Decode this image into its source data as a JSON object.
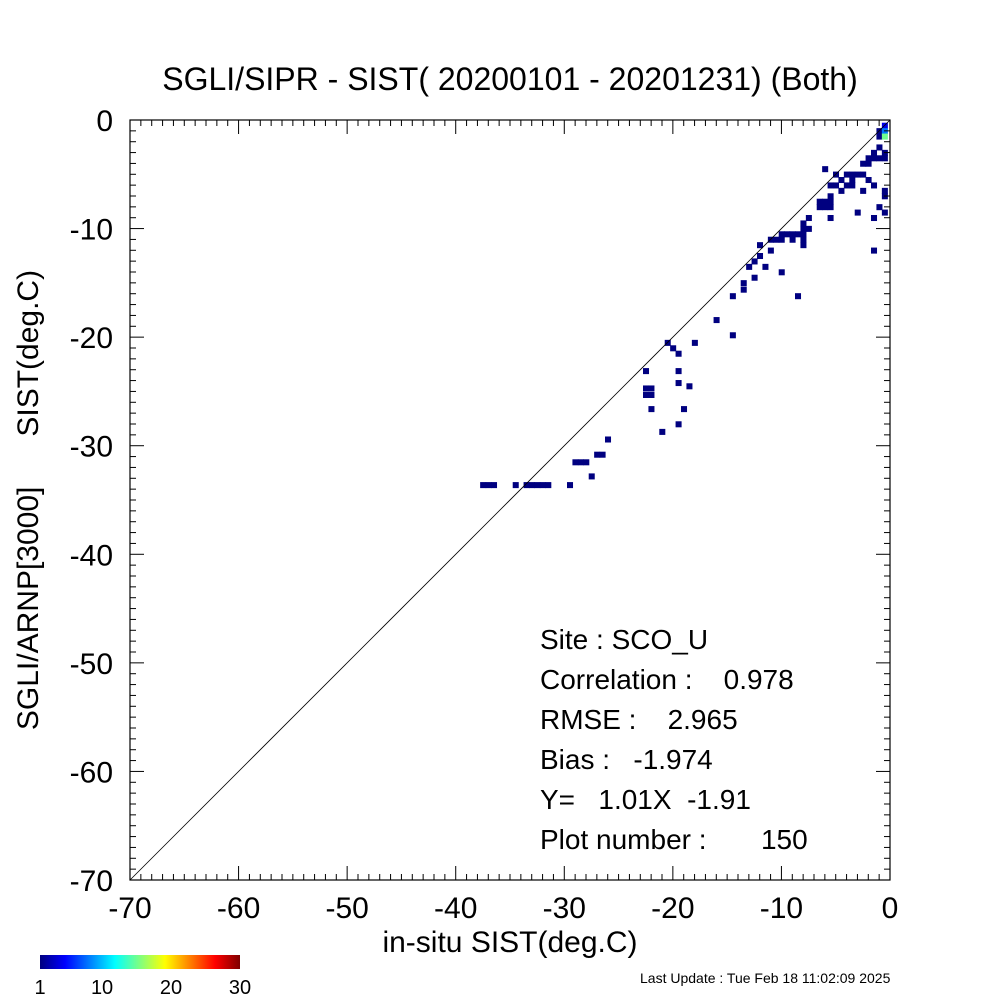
{
  "chart_data": {
    "type": "heatmap",
    "title": "SGLI/SIPR - SIST( 20200101 - 20201231) (Both)",
    "xlabel": "in-situ SIST(deg.C)",
    "ylabel": "SGLI/ARNP[3000]      SIST(deg.C)",
    "xlim": [
      -70,
      0
    ],
    "ylim": [
      -70,
      0
    ],
    "x_ticks": [
      "-70",
      "-60",
      "-50",
      "-40",
      "-30",
      "-20",
      "-10",
      "0"
    ],
    "y_ticks": [
      "0",
      "-10",
      "-20",
      "-30",
      "-40",
      "-50",
      "-60",
      "-70"
    ],
    "reference_line": "1:1",
    "colorbar": {
      "ticks": [
        "1",
        "10",
        "20",
        "30"
      ],
      "range": [
        1,
        30
      ]
    },
    "stats": [
      "Site : SCO_U",
      "Correlation :    0.978",
      "RMSE :    2.965",
      "Bias :   -1.974",
      "Y=   1.01X  -1.91",
      "Plot number :       150"
    ],
    "bins": [
      [
        -37.5,
        -33.6,
        1
      ],
      [
        -37.0,
        -33.6,
        1
      ],
      [
        -36.5,
        -33.6,
        1
      ],
      [
        -34.5,
        -33.6,
        1
      ],
      [
        -33.5,
        -33.6,
        1
      ],
      [
        -33.0,
        -33.6,
        1
      ],
      [
        -32.5,
        -33.6,
        1
      ],
      [
        -32.0,
        -33.6,
        1
      ],
      [
        -31.5,
        -33.6,
        1
      ],
      [
        -29.5,
        -33.6,
        1
      ],
      [
        -29.0,
        -31.5,
        1
      ],
      [
        -28.5,
        -31.5,
        1
      ],
      [
        -28.0,
        -31.5,
        1
      ],
      [
        -27.5,
        -32.8,
        1
      ],
      [
        -27.0,
        -30.8,
        1
      ],
      [
        -26.5,
        -30.8,
        1
      ],
      [
        -26.0,
        -29.4,
        1
      ],
      [
        -22.5,
        -23.1,
        1
      ],
      [
        -22.5,
        -24.7,
        1
      ],
      [
        -22.0,
        -24.7,
        1
      ],
      [
        -22.5,
        -25.3,
        1
      ],
      [
        -22.0,
        -25.3,
        1
      ],
      [
        -22.0,
        -26.6,
        1
      ],
      [
        -21.0,
        -28.7,
        1
      ],
      [
        -20.5,
        -20.5,
        1
      ],
      [
        -20.0,
        -21.0,
        1
      ],
      [
        -19.5,
        -21.5,
        1
      ],
      [
        -19.5,
        -23.1,
        1
      ],
      [
        -19.5,
        -24.2,
        1
      ],
      [
        -19.5,
        -28.0,
        1
      ],
      [
        -19.0,
        -26.6,
        1
      ],
      [
        -18.5,
        -24.5,
        1
      ],
      [
        -18.0,
        -20.5,
        1
      ],
      [
        -16.0,
        -18.4,
        1
      ],
      [
        -14.5,
        -19.8,
        1
      ],
      [
        -14.5,
        -16.2,
        1
      ],
      [
        -13.5,
        -15.6,
        1
      ],
      [
        -13.5,
        -15.0,
        1
      ],
      [
        -13.0,
        -13.5,
        1
      ],
      [
        -12.5,
        -13.0,
        1
      ],
      [
        -12.5,
        -14.5,
        1
      ],
      [
        -12.0,
        -12.5,
        1
      ],
      [
        -12.0,
        -11.5,
        1
      ],
      [
        -11.5,
        -13.5,
        1
      ],
      [
        -11.0,
        -12.0,
        1
      ],
      [
        -11.0,
        -11.0,
        1
      ],
      [
        -10.5,
        -11.0,
        1
      ],
      [
        -10.0,
        -10.5,
        1
      ],
      [
        -10.0,
        -11.0,
        1
      ],
      [
        -10.0,
        -14.0,
        1
      ],
      [
        -9.5,
        -10.5,
        1
      ],
      [
        -9.0,
        -10.5,
        1
      ],
      [
        -9.0,
        -11.0,
        1
      ],
      [
        -8.5,
        -10.5,
        1
      ],
      [
        -8.5,
        -16.2,
        1
      ],
      [
        -8.0,
        -9.5,
        1
      ],
      [
        -8.0,
        -10.0,
        1
      ],
      [
        -8.0,
        -10.5,
        1
      ],
      [
        -8.0,
        -11.0,
        1
      ],
      [
        -8.0,
        -11.5,
        1
      ],
      [
        -7.5,
        -9.0,
        1
      ],
      [
        -7.5,
        -10.0,
        1
      ],
      [
        -6.5,
        -7.5,
        1
      ],
      [
        -6.5,
        -8.0,
        1
      ],
      [
        -6.0,
        -7.5,
        1
      ],
      [
        -6.0,
        -8.0,
        1
      ],
      [
        -5.5,
        -7.0,
        1
      ],
      [
        -5.5,
        -7.5,
        1
      ],
      [
        -5.5,
        -8.0,
        1
      ],
      [
        -5.5,
        -9.0,
        1
      ],
      [
        -5.5,
        -6.0,
        1
      ],
      [
        -6.0,
        -4.5,
        1
      ],
      [
        -5.0,
        -5.0,
        1
      ],
      [
        -5.0,
        -6.0,
        1
      ],
      [
        -4.5,
        -5.5,
        1
      ],
      [
        -4.5,
        -6.5,
        1
      ],
      [
        -4.0,
        -5.0,
        1
      ],
      [
        -4.0,
        -6.0,
        1
      ],
      [
        -3.5,
        -5.0,
        1
      ],
      [
        -3.5,
        -5.5,
        1
      ],
      [
        -3.5,
        -6.0,
        1
      ],
      [
        -3.0,
        -5.0,
        1
      ],
      [
        -3.0,
        -8.5,
        1
      ],
      [
        -2.5,
        -4.0,
        1
      ],
      [
        -2.5,
        -5.0,
        1
      ],
      [
        -2.0,
        -3.5,
        1
      ],
      [
        -2.0,
        -4.0,
        1
      ],
      [
        -2.0,
        -5.5,
        1
      ],
      [
        -1.5,
        -3.0,
        1
      ],
      [
        -1.5,
        -3.5,
        1
      ],
      [
        -1.5,
        -6.0,
        1
      ],
      [
        -1.5,
        -9.0,
        1
      ],
      [
        -1.5,
        -12.0,
        1
      ],
      [
        -1.0,
        -2.5,
        1
      ],
      [
        -1.0,
        -3.5,
        1
      ],
      [
        -1.0,
        -1.0,
        1
      ],
      [
        -1.0,
        -1.5,
        1
      ],
      [
        -1.0,
        -8.0,
        1
      ],
      [
        -0.5,
        -0.5,
        4
      ],
      [
        -0.5,
        -1.0,
        8
      ],
      [
        -0.5,
        -1.5,
        15
      ],
      [
        -0.5,
        -3.0,
        1
      ],
      [
        -0.5,
        -3.5,
        1
      ],
      [
        -0.5,
        -6.5,
        1
      ],
      [
        -0.5,
        -7.0,
        1
      ],
      [
        -0.5,
        -8.5,
        1
      ],
      [
        -2.5,
        -6.5,
        1
      ]
    ]
  },
  "footer": {
    "last_update": "Last Update : Tue Feb 18 11:02:09 2025"
  }
}
